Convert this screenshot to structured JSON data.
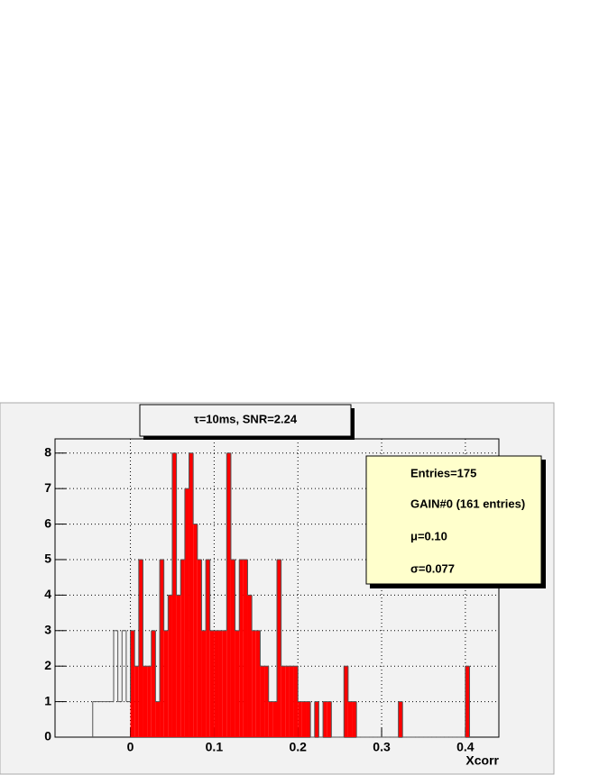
{
  "chart_data": {
    "type": "histogram",
    "title": "τ=10ms, SNR=2.24",
    "xlabel": "Xcorr",
    "stats": [
      "Entries=175",
      "GAIN#0 (161 entries)",
      "μ=0.10",
      "σ=0.077"
    ],
    "bins": [
      -0.045,
      -0.04,
      -0.035,
      -0.03,
      -0.025,
      -0.02,
      -0.015,
      -0.01,
      -0.005,
      0,
      0.005,
      0.01,
      0.015,
      0.02,
      0.025,
      0.03,
      0.035,
      0.04,
      0.045,
      0.05,
      0.055,
      0.06,
      0.065,
      0.07,
      0.075,
      0.08,
      0.085,
      0.09,
      0.095,
      0.1,
      0.105,
      0.11,
      0.115,
      0.12,
      0.125,
      0.13,
      0.135,
      0.14,
      0.145,
      0.15,
      0.155,
      0.16,
      0.165,
      0.17,
      0.175,
      0.18,
      0.185,
      0.19,
      0.195,
      0.2,
      0.205,
      0.21,
      0.215,
      0.22,
      0.225,
      0.23,
      0.235,
      0.24,
      0.245,
      0.25,
      0.255,
      0.26,
      0.265,
      0.27,
      0.275,
      0.28,
      0.285,
      0.29,
      0.295,
      0.3,
      0.305,
      0.31,
      0.315,
      0.32,
      0.325,
      0.33,
      0.335,
      0.34,
      0.345,
      0.35,
      0.355,
      0.36,
      0.365,
      0.37,
      0.375,
      0.38,
      0.385,
      0.39,
      0.395,
      0.4,
      0.405
    ],
    "series": [
      {
        "color": "#555555",
        "fill": false,
        "values": [
          1,
          1,
          1,
          1,
          1,
          3,
          1,
          3,
          1,
          3,
          2,
          5,
          2,
          2,
          3,
          1,
          5,
          3,
          4,
          8,
          4,
          5,
          7,
          8,
          6,
          5,
          3,
          5,
          3,
          3,
          3,
          3,
          8,
          5,
          3,
          5,
          5,
          4,
          3,
          3,
          2,
          2,
          1,
          1,
          5,
          2,
          2,
          2,
          2,
          1,
          1,
          1,
          0,
          1,
          0,
          1,
          1,
          0,
          0,
          0,
          2,
          1,
          1,
          0,
          0,
          0,
          0,
          0,
          0,
          0,
          0,
          0,
          0,
          1,
          0,
          0,
          0,
          0,
          0,
          0,
          0,
          0,
          0,
          0,
          0,
          0,
          0,
          0,
          0,
          2
        ]
      },
      {
        "color": "#ff0000",
        "fill": true,
        "values": [
          0,
          0,
          0,
          0,
          0,
          0,
          0,
          0,
          0,
          3,
          2,
          5,
          2,
          2,
          3,
          1,
          5,
          3,
          4,
          8,
          4,
          5,
          7,
          8,
          6,
          5,
          3,
          5,
          3,
          3,
          3,
          3,
          8,
          5,
          3,
          5,
          5,
          4,
          3,
          3,
          2,
          2,
          1,
          1,
          5,
          2,
          2,
          2,
          2,
          1,
          1,
          1,
          0,
          1,
          0,
          1,
          1,
          0,
          0,
          0,
          2,
          1,
          1,
          0,
          0,
          0,
          0,
          0,
          0,
          0,
          0,
          0,
          0,
          1,
          0,
          0,
          0,
          0,
          0,
          0,
          0,
          0,
          0,
          0,
          0,
          0,
          0,
          0,
          0,
          2
        ]
      }
    ],
    "xlim": [
      -0.09,
      0.44
    ],
    "ylim": [
      0,
      8.4
    ],
    "xticks": [
      0,
      0.1,
      0.2,
      0.3,
      0.4
    ],
    "yticks": [
      0,
      1,
      2,
      3,
      4,
      5,
      6,
      7,
      8
    ],
    "grid": true
  }
}
